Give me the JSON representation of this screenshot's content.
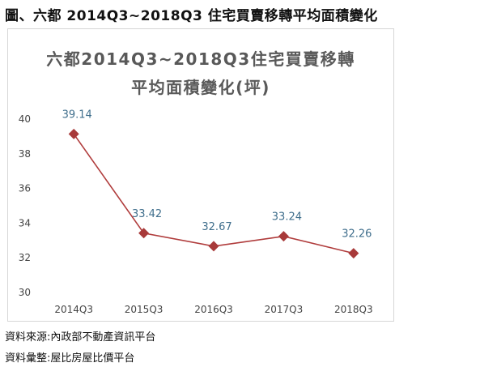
{
  "caption": "圖、六都 2014Q3~2018Q3 住宅買賣移轉平均面積變化",
  "footer": {
    "source": "資料來源:內政部不動產資訊平台",
    "compiled": "資料彙整:屋比房屋比價平台"
  },
  "colors": {
    "line": "#b03c3c",
    "marker": "#a83a3a",
    "data_label": "#3f6e8c",
    "title": "#595959"
  },
  "chart_data": {
    "type": "line",
    "title_lines": [
      "六都2014Q3~2018Q3住宅買賣移轉",
      "平均面積變化(坪)"
    ],
    "categories": [
      "2014Q3",
      "2015Q3",
      "2016Q3",
      "2017Q3",
      "2018Q3"
    ],
    "values": [
      39.14,
      33.42,
      32.67,
      33.24,
      32.26
    ],
    "data_labels": [
      "39.14",
      "33.42",
      "32.67",
      "33.24",
      "32.26"
    ],
    "ylim": [
      30,
      40
    ],
    "yticks": [
      30,
      32,
      34,
      36,
      38,
      40
    ],
    "grid": false,
    "marker": "diamond"
  }
}
